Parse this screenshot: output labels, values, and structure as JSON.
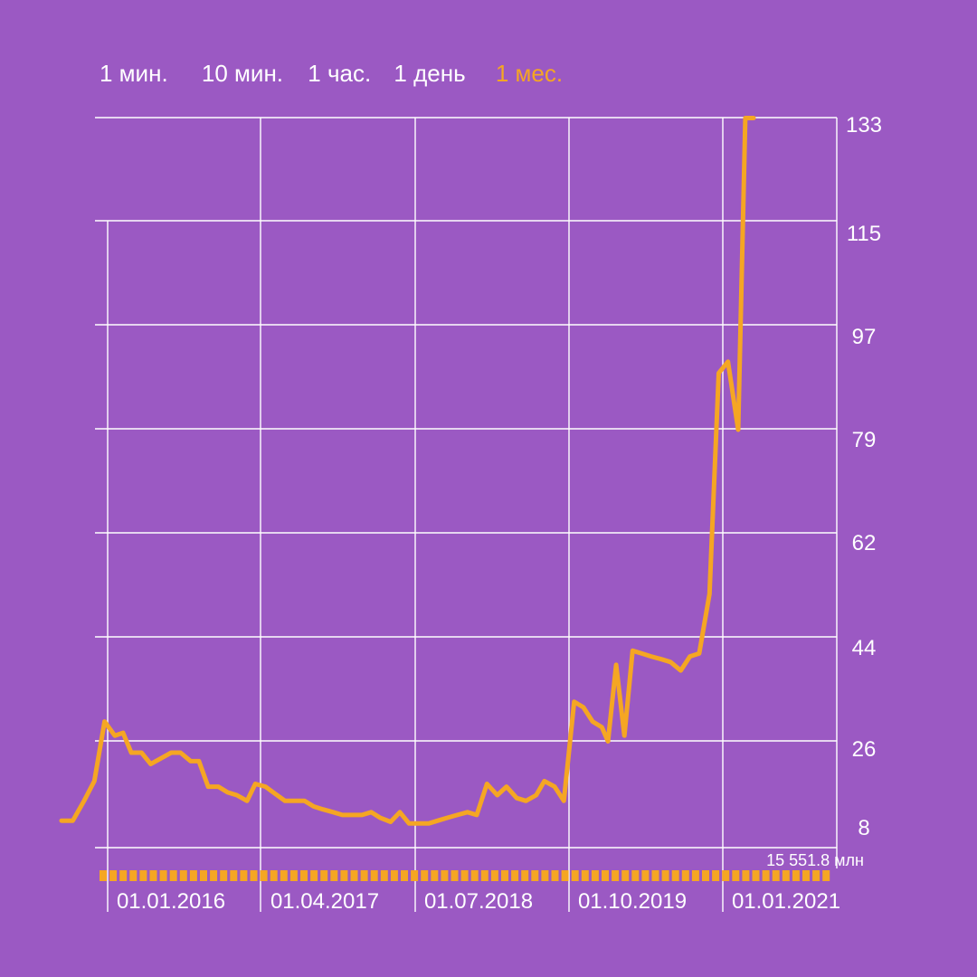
{
  "colors": {
    "background": "#9b59c3",
    "grid": "#ffffff",
    "line": "#f5a623",
    "active_tab": "#f5a623",
    "text": "#ffffff"
  },
  "tabs": [
    {
      "label": "1 мин.",
      "active": false
    },
    {
      "label": "10 мин.",
      "active": false
    },
    {
      "label": "1 час.",
      "active": false
    },
    {
      "label": "1 день",
      "active": false
    },
    {
      "label": "1 мес.",
      "active": true
    }
  ],
  "volume_label": "15 551.8 млн",
  "chart_data": {
    "type": "line",
    "y_ticks": [
      "133",
      "115",
      "97",
      "79",
      "62",
      "44",
      "26",
      "8"
    ],
    "x_ticks": [
      "01.01.2016",
      "01.04.2017",
      "01.07.2018",
      "01.10.2019",
      "01.01.2021"
    ],
    "x_tick_months": [
      0,
      15,
      30,
      45,
      60
    ],
    "ylim": [
      5,
      135
    ],
    "grid": true,
    "series": [
      {
        "values": [
          [
            -4.5,
            11.0
          ],
          [
            -3.4,
            11.0
          ],
          [
            -2.3,
            14.5
          ],
          [
            -1.3,
            18.0
          ],
          [
            -0.3,
            28.5
          ],
          [
            0.7,
            26.0
          ],
          [
            1.5,
            26.5
          ],
          [
            2.3,
            23.0
          ],
          [
            3.3,
            23.0
          ],
          [
            4.2,
            21.0
          ],
          [
            5.2,
            22.0
          ],
          [
            6.2,
            23.0
          ],
          [
            7.1,
            23.0
          ],
          [
            8.1,
            21.5
          ],
          [
            8.9,
            21.5
          ],
          [
            9.8,
            17.0
          ],
          [
            10.8,
            17.0
          ],
          [
            11.7,
            16.0
          ],
          [
            12.6,
            15.5
          ],
          [
            13.6,
            14.5
          ],
          [
            14.4,
            17.5
          ],
          [
            15.4,
            17.0
          ],
          [
            16.3,
            15.8
          ],
          [
            17.3,
            14.5
          ],
          [
            18.2,
            14.5
          ],
          [
            19.2,
            14.5
          ],
          [
            20.1,
            13.5
          ],
          [
            21.0,
            13.0
          ],
          [
            22.0,
            12.5
          ],
          [
            22.9,
            12.0
          ],
          [
            23.9,
            12.0
          ],
          [
            24.8,
            12.0
          ],
          [
            25.7,
            12.5
          ],
          [
            26.6,
            11.5
          ],
          [
            27.6,
            10.8
          ],
          [
            28.5,
            12.5
          ],
          [
            29.4,
            10.5
          ],
          [
            30.4,
            10.5
          ],
          [
            31.3,
            10.5
          ],
          [
            32.2,
            11.0
          ],
          [
            33.1,
            11.5
          ],
          [
            34.1,
            12.0
          ],
          [
            35.1,
            12.5
          ],
          [
            36.0,
            12.0
          ],
          [
            37.0,
            17.5
          ],
          [
            38.0,
            15.5
          ],
          [
            38.9,
            17.0
          ],
          [
            39.9,
            15.0
          ],
          [
            40.8,
            14.5
          ],
          [
            41.8,
            15.5
          ],
          [
            42.6,
            18.0
          ],
          [
            43.6,
            17.0
          ],
          [
            44.5,
            14.5
          ],
          [
            45.5,
            32.0
          ],
          [
            46.4,
            31.0
          ],
          [
            47.3,
            28.5
          ],
          [
            48.2,
            27.5
          ],
          [
            48.8,
            25.0
          ],
          [
            49.6,
            38.5
          ],
          [
            50.4,
            26.0
          ],
          [
            51.2,
            41.0
          ],
          [
            52.1,
            40.5
          ],
          [
            53.0,
            40.0
          ],
          [
            54.0,
            39.5
          ],
          [
            54.9,
            39.0
          ],
          [
            55.9,
            37.5
          ],
          [
            56.8,
            40.0
          ],
          [
            57.7,
            40.5
          ],
          [
            58.7,
            51.0
          ],
          [
            59.6,
            90.0
          ],
          [
            60.5,
            92.0
          ],
          [
            61.5,
            80.0
          ],
          [
            62.2,
            135.0
          ],
          [
            63.0,
            135.0
          ]
        ]
      }
    ]
  }
}
